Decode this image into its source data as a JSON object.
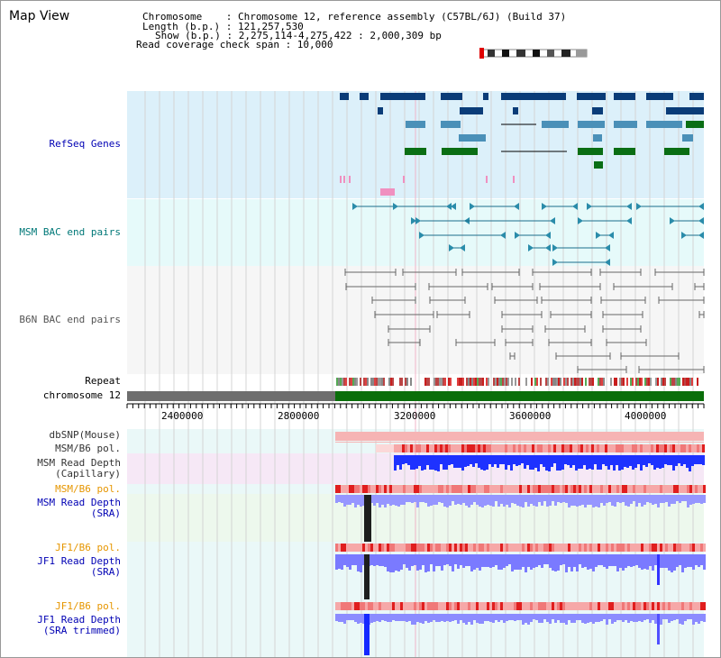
{
  "title": "Map View",
  "info": {
    "chromosome": "Chromosome    : Chromosome 12, reference assembly (C57BL/6J) (Build 37)",
    "length": "Length (b.p.) : 121,257,530",
    "show": "Show (b.p.) : 2,275,114-4,275,422 : 2,000,309 bp",
    "coverage": "Read coverage check span : 10,000"
  },
  "tracks": {
    "refseq": "RefSeq Genes",
    "msm_bac": "MSM BAC end pairs",
    "b6n_bac": "B6N BAC end pairs",
    "repeat": "Repeat",
    "chromosome": "chromosome 12",
    "dbsnp": "dbSNP(Mouse)",
    "msm_b6_pol_1": "MSM/B6 pol.",
    "msm_depth_cap_1": "MSM Read Depth",
    "msm_depth_cap_2": "(Capillary)",
    "msm_b6_pol_2": "MSM/B6 pol.",
    "msm_depth_sra_1": "MSM Read Depth",
    "msm_depth_sra_2": "(SRA)",
    "jf1_b6_pol_1": "JF1/B6 pol.",
    "jf1_depth_sra_1": "JF1 Read Depth",
    "jf1_depth_sra_2": "(SRA)",
    "jf1_b6_pol_2": "JF1/B6 pol.",
    "jf1_depth_trim_1": "JF1 Read Depth",
    "jf1_depth_trim_2": "(SRA trimmed)"
  },
  "axis": {
    "ticks": [
      "2400000",
      "2800000",
      "3200000",
      "3600000",
      "4000000"
    ]
  },
  "colors": {
    "refseq_bg": "#dcf0fa",
    "bac_bg": "#e6fafa",
    "b6n_bg": "#f6f6f6",
    "gene_dark": "#0a3c78",
    "gene_mid": "#4a90b8",
    "gene_green": "#0a6e14",
    "chrom_gray": "#6e6e6e",
    "chrom_green": "#0a6e0a",
    "depth_blue": "#1428ff",
    "depth_light": "#8c8cff",
    "pol_red": "#f08c8c",
    "label_blue": "#0000b4",
    "label_orange": "#e69600",
    "label_teal": "#007878"
  }
}
